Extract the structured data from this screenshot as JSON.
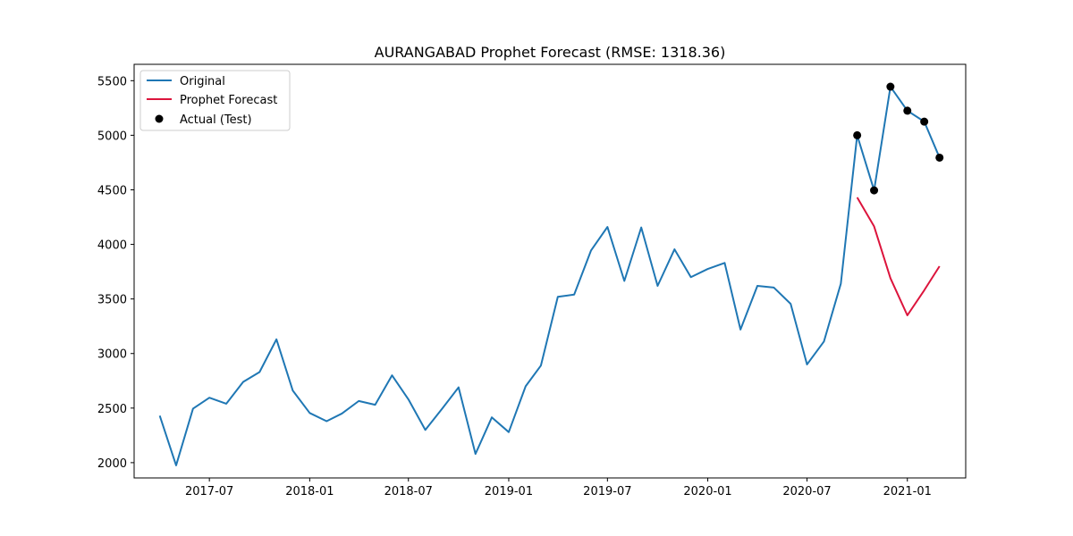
{
  "chart_data": {
    "type": "line",
    "title": "AURANGABAD Prophet Forecast (RMSE: 1318.36)",
    "xlabel": "",
    "ylabel": "",
    "x_ticks": [
      "2017-07",
      "2018-01",
      "2018-07",
      "2019-01",
      "2019-07",
      "2020-01",
      "2020-07",
      "2021-01"
    ],
    "y_ticks": [
      2000,
      2500,
      3000,
      3500,
      4000,
      4500,
      5000,
      5500
    ],
    "xlim": [
      "2017-02-13",
      "2021-04-18"
    ],
    "ylim": [
      1860,
      5650
    ],
    "grid": false,
    "legend_position": "top-left",
    "series": [
      {
        "name": "Original",
        "kind": "line",
        "color": "#1f77b4",
        "points": [
          [
            "2017-04-01",
            2430
          ],
          [
            "2017-05-01",
            1975
          ],
          [
            "2017-06-01",
            2495
          ],
          [
            "2017-07-01",
            2595
          ],
          [
            "2017-08-01",
            2540
          ],
          [
            "2017-09-01",
            2740
          ],
          [
            "2017-10-01",
            2830
          ],
          [
            "2017-11-01",
            3130
          ],
          [
            "2017-12-01",
            2660
          ],
          [
            "2018-01-01",
            2455
          ],
          [
            "2018-02-01",
            2380
          ],
          [
            "2018-03-01",
            2450
          ],
          [
            "2018-04-01",
            2565
          ],
          [
            "2018-05-01",
            2530
          ],
          [
            "2018-06-01",
            2800
          ],
          [
            "2018-07-01",
            2580
          ],
          [
            "2018-08-01",
            2300
          ],
          [
            "2018-09-01",
            2495
          ],
          [
            "2018-10-01",
            2690
          ],
          [
            "2018-11-01",
            2080
          ],
          [
            "2018-12-01",
            2415
          ],
          [
            "2019-01-01",
            2280
          ],
          [
            "2019-02-01",
            2700
          ],
          [
            "2019-03-01",
            2890
          ],
          [
            "2019-04-01",
            3520
          ],
          [
            "2019-05-01",
            3540
          ],
          [
            "2019-06-01",
            3945
          ],
          [
            "2019-07-01",
            4160
          ],
          [
            "2019-08-01",
            3665
          ],
          [
            "2019-09-01",
            4155
          ],
          [
            "2019-10-01",
            3620
          ],
          [
            "2019-11-01",
            3955
          ],
          [
            "2019-12-01",
            3700
          ],
          [
            "2020-01-01",
            3775
          ],
          [
            "2020-02-01",
            3830
          ],
          [
            "2020-03-01",
            3220
          ],
          [
            "2020-04-01",
            3620
          ],
          [
            "2020-05-01",
            3605
          ],
          [
            "2020-06-01",
            3455
          ],
          [
            "2020-07-01",
            2900
          ],
          [
            "2020-08-01",
            3110
          ],
          [
            "2020-09-01",
            3640
          ],
          [
            "2020-10-01",
            5000
          ],
          [
            "2020-11-01",
            4495
          ],
          [
            "2020-12-01",
            5445
          ],
          [
            "2021-01-01",
            5225
          ],
          [
            "2021-02-01",
            5125
          ],
          [
            "2021-03-01",
            4795
          ]
        ]
      },
      {
        "name": "Prophet Forecast",
        "kind": "line",
        "color": "#dc143c",
        "points": [
          [
            "2020-10-01",
            4430
          ],
          [
            "2020-11-01",
            4165
          ],
          [
            "2020-12-01",
            3690
          ],
          [
            "2021-01-01",
            3350
          ],
          [
            "2021-02-01",
            3580
          ],
          [
            "2021-03-01",
            3800
          ]
        ]
      },
      {
        "name": "Actual (Test)",
        "kind": "scatter",
        "color": "#000000",
        "points": [
          [
            "2020-10-01",
            5000
          ],
          [
            "2020-11-01",
            4495
          ],
          [
            "2020-12-01",
            5445
          ],
          [
            "2021-01-01",
            5225
          ],
          [
            "2021-02-01",
            5125
          ],
          [
            "2021-03-01",
            4795
          ]
        ]
      }
    ]
  }
}
